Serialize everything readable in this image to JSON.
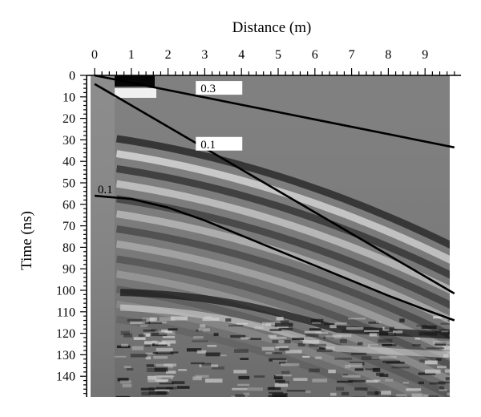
{
  "chart_data": {
    "type": "line",
    "description": "",
    "xlabel": "Distance (m)",
    "ylabel": "Time (ns)",
    "x_axis_position": "top",
    "y_axis_inverted": true,
    "xlim": [
      0,
      10
    ],
    "ylim": [
      0,
      150
    ],
    "x_ticks": [
      "0",
      "1",
      "2",
      "3",
      "4",
      "5",
      "6",
      "7",
      "8",
      "9"
    ],
    "y_ticks": [
      "0",
      "10",
      "20",
      "30",
      "40",
      "50",
      "60",
      "70",
      "80",
      "90",
      "100",
      "110",
      "120",
      "130",
      "140"
    ],
    "grid": false,
    "background": "grayscale radargram image",
    "series": [
      {
        "x": [
          0,
          9.8
        ],
        "y": [
          0,
          33.5
        ]
      },
      {
        "x": [
          0,
          9.8
        ],
        "y": [
          4,
          101.5
        ]
      },
      {
        "x": [
          0,
          1,
          2,
          3,
          4,
          5,
          6,
          7,
          8,
          9,
          9.8
        ],
        "y": [
          56,
          57.5,
          61.5,
          67.5,
          74.5,
          81.5,
          88.5,
          95.5,
          102.5,
          109,
          114
        ]
      }
    ],
    "annotations": [
      {
        "text": "0.3",
        "x": 2.8,
        "y": 6
      },
      {
        "text": "0.1",
        "x": 2.8,
        "y": 32
      },
      {
        "text": "0.1",
        "x": 0.15,
        "y": 53
      }
    ],
    "colors": {
      "line": "#000000",
      "radargram_base": "#808080"
    }
  }
}
